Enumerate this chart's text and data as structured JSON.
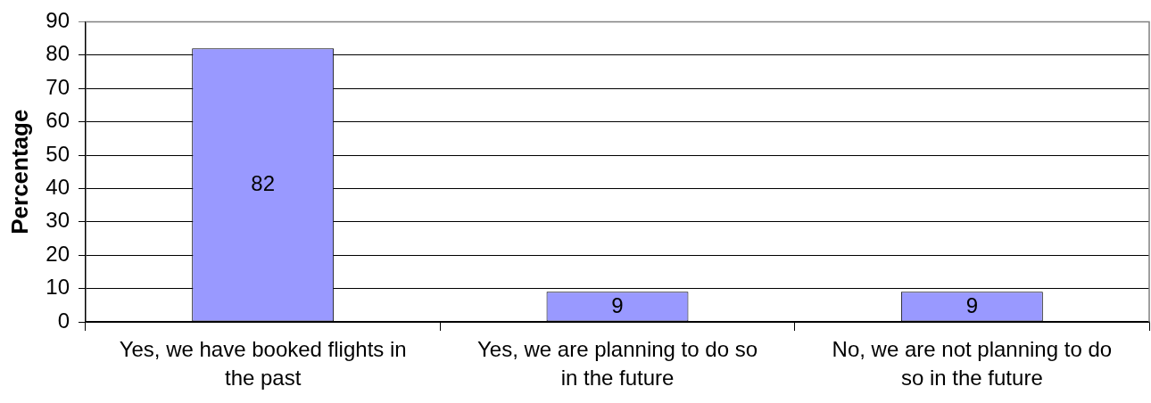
{
  "chart_data": {
    "type": "bar",
    "ylabel": "Percentage",
    "categories": [
      "Yes, we have booked flights in the past",
      "Yes, we are planning to do so in the future",
      "No, we are not planning to do so in the future"
    ],
    "values": [
      82,
      9,
      9
    ],
    "color": "#9999ff",
    "ylim": [
      0,
      90
    ],
    "yticks": [
      0,
      10,
      20,
      30,
      40,
      50,
      60,
      70,
      80,
      90
    ],
    "grid": "y",
    "data_labels": true,
    "legend": false
  }
}
